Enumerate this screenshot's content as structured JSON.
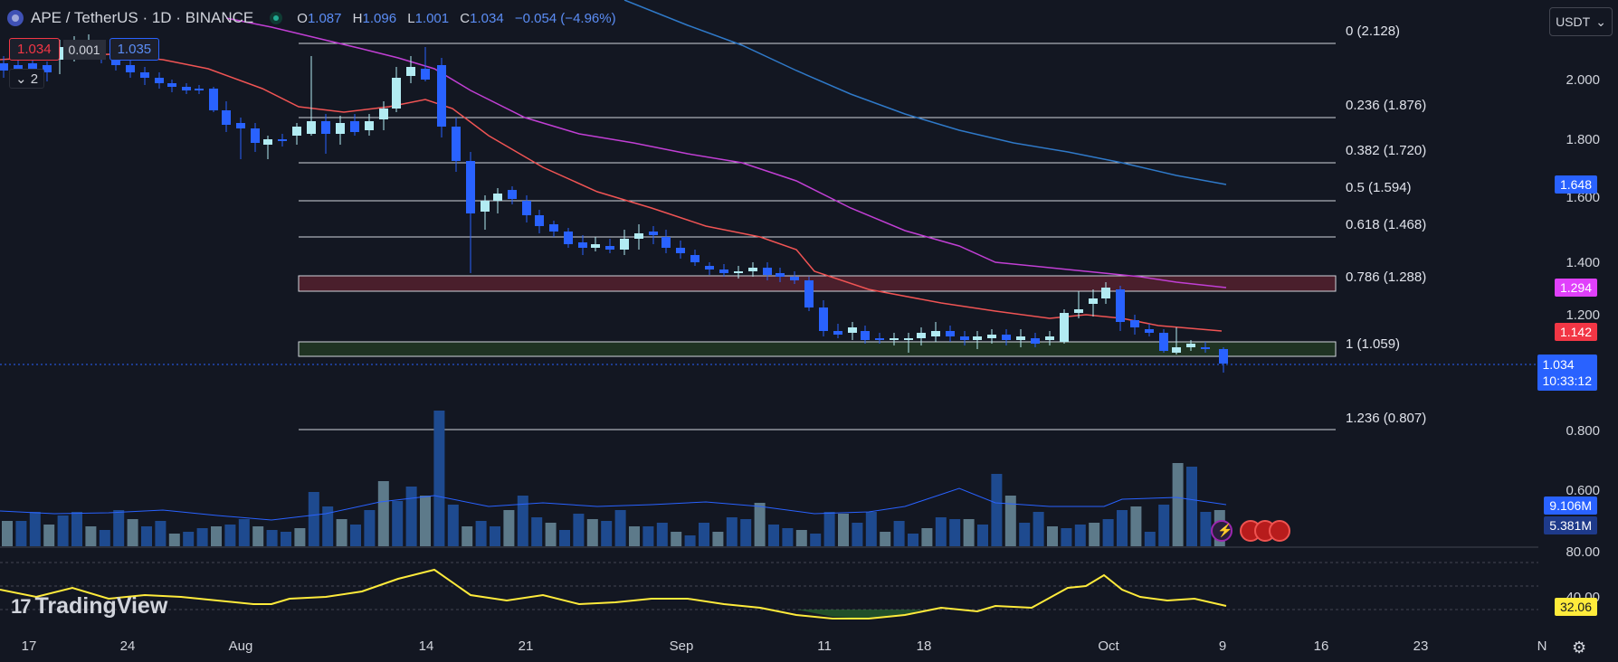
{
  "header": {
    "symbol": "APE / TetherUS · 1D · BINANCE",
    "o_label": "O",
    "o_value": "1.087",
    "h_label": "H",
    "h_value": "1.096",
    "l_label": "L",
    "l_value": "1.001",
    "c_label": "C",
    "c_value": "1.034",
    "change": "−0.054 (−4.96%)"
  },
  "order": {
    "bid": "1.034",
    "spread": "0.001",
    "ask": "1.035"
  },
  "collapse_label": "2",
  "currency": {
    "label": "USDT",
    "icon": "chevron-down-icon"
  },
  "price_axis": {
    "labels": [
      "2.000",
      "1.800",
      "1.600",
      "1.400",
      "1.200",
      "0.800",
      "0.600",
      "80.00",
      "40.00"
    ]
  },
  "fib_levels": [
    {
      "label": "0 (2.128)",
      "price": 2.128
    },
    {
      "label": "0.236 (1.876)",
      "price": 1.876
    },
    {
      "label": "0.382 (1.720)",
      "price": 1.72
    },
    {
      "label": "0.5 (1.594)",
      "price": 1.594
    },
    {
      "label": "0.618 (1.468)",
      "price": 1.468
    },
    {
      "label": "0.786 (1.288)",
      "price": 1.288
    },
    {
      "label": "1 (1.059)",
      "price": 1.059
    },
    {
      "label": "1.236 (0.807)",
      "price": 0.807
    }
  ],
  "badges": {
    "ma_blue": {
      "text": "1.648",
      "color": "#2962ff"
    },
    "ma_purple": {
      "text": "1.294",
      "color": "#e040fb"
    },
    "ma_red": {
      "text": "1.142",
      "color": "#f23645"
    },
    "last": {
      "text": "1.034",
      "countdown": "10:33:12",
      "color": "#2962ff"
    },
    "vol_ma": {
      "text": "9.106M",
      "color": "#2962ff"
    },
    "vol": {
      "text": "5.381M",
      "color": "#2962ff"
    },
    "rsi": {
      "text": "32.06",
      "color": "#ffeb3b"
    }
  },
  "time_axis": [
    "17",
    "24",
    "Aug",
    "14",
    "21",
    "Sep",
    "11",
    "18",
    "Oct",
    "9",
    "16",
    "23",
    "N"
  ],
  "branding": {
    "logo_text": "TradingView",
    "logo_mark": "17"
  },
  "colors": {
    "up": "#b2ebf2",
    "down": "#2962ff",
    "ma_red": "#f05454",
    "ma_purple": "#c13fd4",
    "ma_blue": "#2f79c8",
    "rsi": "#ffeb3b",
    "grid_text": "#d1d4dc"
  }
}
